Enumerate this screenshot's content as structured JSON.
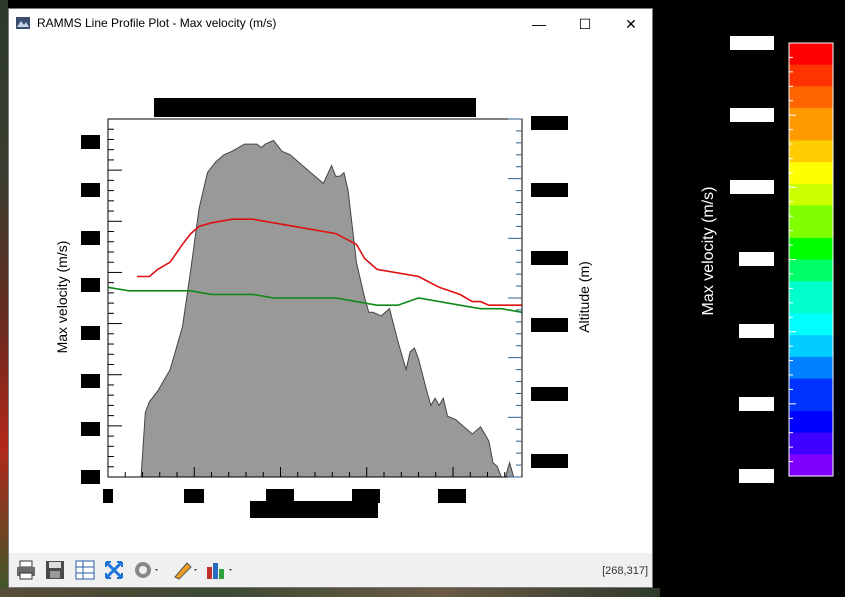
{
  "window": {
    "title": "RAMMS Line Profile Plot - Max velocity (m/s)",
    "minimize_glyph": "—",
    "maximize_glyph": "☐",
    "close_glyph": "✕"
  },
  "plot": {
    "ylabel_left": "Max velocity (m/s)",
    "ylabel_right": "Altitude (m)"
  },
  "toolbar": {
    "icons": [
      "print-icon",
      "save-icon",
      "data-table-icon",
      "zoom-fit-icon",
      "settings-gear-icon",
      "pencil-icon",
      "bar-chart-icon"
    ],
    "coords": "[268,317]"
  },
  "colorbar": {
    "label": "Max velocity (m/s)",
    "colors": [
      "#ff1a00",
      "#ff6a00",
      "#ffbf00",
      "#d9ff00",
      "#00ff00",
      "#00ff99",
      "#00e5ff",
      "#0080ff",
      "#0000ff",
      "#8000ff"
    ]
  },
  "chart_data": {
    "type": "area",
    "xlabel": "",
    "ylabel": "Max velocity (m/s)",
    "y2label": "Altitude (m)",
    "series": [
      {
        "name": "",
        "color": "#999999",
        "kind": "area",
        "x": [
          0,
          5,
          7,
          8,
          9,
          10,
          12,
          15,
          18,
          20,
          22,
          24,
          26,
          27,
          28,
          30,
          33,
          36,
          37,
          38,
          40,
          42,
          44,
          46,
          48,
          50,
          52,
          54,
          55,
          56,
          57,
          58,
          60,
          62,
          63,
          64,
          66,
          68,
          70,
          72,
          73,
          74,
          75,
          77,
          78,
          79,
          80,
          81,
          82,
          84,
          86,
          88,
          90,
          92,
          93,
          94,
          95,
          96,
          97,
          98,
          99,
          100
        ],
        "y": [
          0,
          0,
          0,
          0,
          18,
          21,
          24,
          30,
          42,
          58,
          75,
          85,
          88,
          89,
          90,
          91,
          93,
          93,
          92,
          93,
          94,
          91,
          90,
          88,
          86,
          84,
          82,
          87,
          84,
          84,
          85,
          80,
          60,
          50,
          46,
          46,
          45,
          47,
          38,
          30,
          35,
          36,
          33,
          24,
          20,
          22,
          20,
          22,
          17,
          16,
          14,
          12,
          14,
          10,
          4,
          3,
          0,
          0,
          4,
          0,
          0,
          0
        ]
      },
      {
        "name": "",
        "color": "#dd1111",
        "kind": "line",
        "x": [
          7,
          10,
          12,
          15,
          18,
          20,
          22,
          25,
          30,
          35,
          40,
          45,
          50,
          55,
          60,
          62,
          65,
          70,
          75,
          80,
          85,
          88,
          90,
          92,
          94,
          96,
          98,
          100
        ],
        "y": [
          56,
          56,
          58,
          60,
          65,
          68,
          70,
          71,
          72,
          72,
          71,
          70,
          69,
          68,
          65,
          61,
          58,
          57,
          56,
          53,
          51,
          49,
          49,
          48,
          48,
          48,
          48,
          48
        ]
      },
      {
        "name": "",
        "color": "#11891a",
        "kind": "line",
        "x": [
          0,
          5,
          10,
          15,
          20,
          25,
          30,
          35,
          40,
          45,
          50,
          55,
          60,
          65,
          70,
          75,
          80,
          85,
          90,
          95,
          100
        ],
        "y": [
          53,
          52,
          52,
          52,
          52,
          51,
          51,
          51,
          50,
          50,
          50,
          50,
          49,
          48,
          48,
          50,
          49,
          48,
          47,
          47,
          46
        ]
      }
    ]
  }
}
